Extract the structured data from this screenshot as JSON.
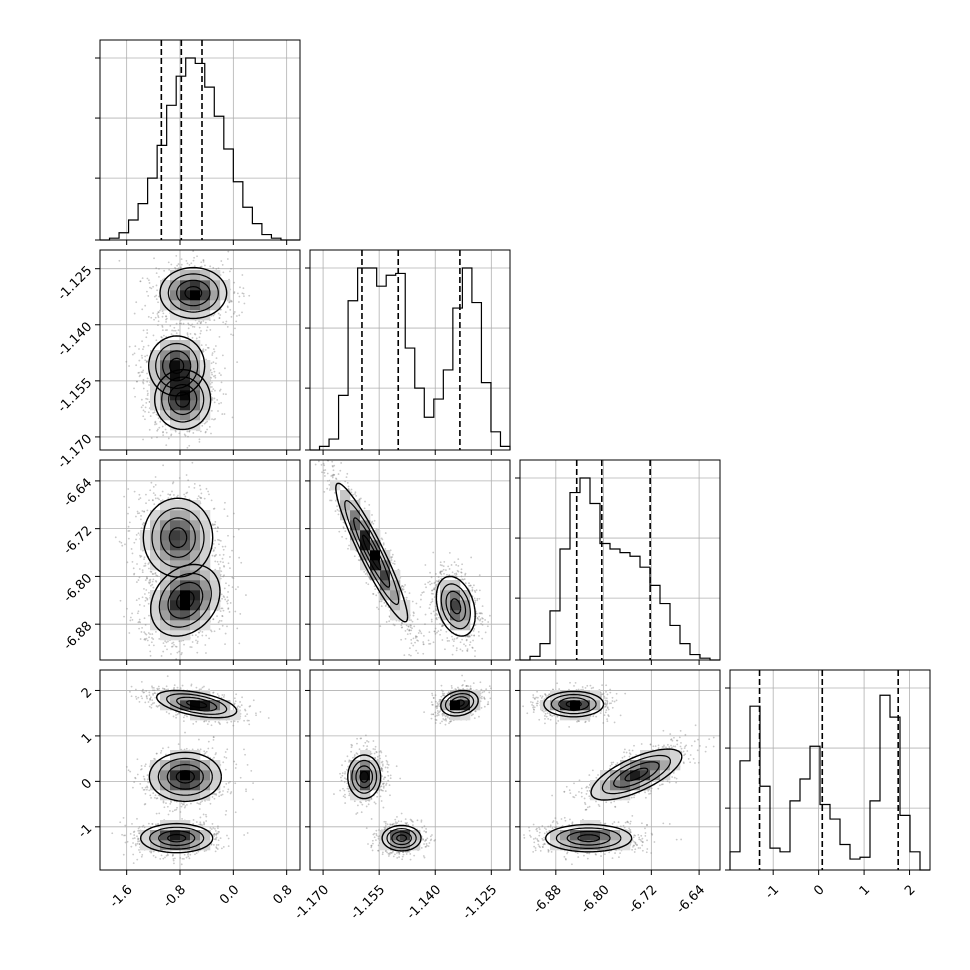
{
  "chart_data": {
    "type": "corner",
    "params": [
      {
        "ticks": [
          "-1.6",
          "-0.8",
          "0.0",
          "0.8"
        ],
        "tick_values": [
          -1.6,
          -0.8,
          0.0,
          0.8
        ],
        "range": [
          -2.0,
          1.0
        ],
        "quantiles": [
          -1.08,
          -0.78,
          -0.47
        ]
      },
      {
        "ticks": [
          "-1.170",
          "-1.155",
          "-1.140",
          "-1.125"
        ],
        "tick_values": [
          -1.17,
          -1.155,
          -1.14,
          -1.125
        ],
        "range": [
          -1.1735,
          -1.12
        ],
        "quantiles": [
          -1.1596,
          -1.1499,
          -1.1334
        ]
      },
      {
        "ticks": [
          "-6.88",
          "-6.80",
          "-6.72",
          "-6.64"
        ],
        "tick_values": [
          -6.88,
          -6.8,
          -6.72,
          -6.64
        ],
        "range": [
          -6.94,
          -6.605
        ],
        "quantiles": [
          -6.845,
          -6.803,
          -6.722
        ]
      },
      {
        "ticks": [
          "-1",
          "0",
          "1",
          "2"
        ],
        "tick_values": [
          -1,
          0,
          1,
          2
        ],
        "range": [
          -1.95,
          2.45
        ],
        "quantiles": [
          -1.3,
          0.08,
          1.75
        ]
      }
    ],
    "histograms": [
      {
        "counts": [
          0.0,
          0.01,
          0.04,
          0.11,
          0.2,
          0.34,
          0.52,
          0.74,
          0.9,
          1.0,
          0.97,
          0.84,
          0.68,
          0.5,
          0.32,
          0.18,
          0.09,
          0.03,
          0.01,
          0.0,
          0.0
        ]
      },
      {
        "counts": [
          0.0,
          0.02,
          0.06,
          0.3,
          0.82,
          1.0,
          1.0,
          0.9,
          0.96,
          0.97,
          0.56,
          0.34,
          0.18,
          0.28,
          0.44,
          0.78,
          1.0,
          0.81,
          0.37,
          0.1,
          0.02
        ]
      },
      {
        "counts": [
          0.0,
          0.02,
          0.09,
          0.27,
          0.61,
          0.92,
          1.0,
          0.86,
          0.64,
          0.61,
          0.59,
          0.57,
          0.51,
          0.41,
          0.31,
          0.19,
          0.09,
          0.03,
          0.01,
          0.0
        ]
      },
      {
        "counts": [
          0.1,
          0.6,
          0.9,
          0.46,
          0.12,
          0.1,
          0.38,
          0.5,
          0.68,
          0.36,
          0.28,
          0.14,
          0.06,
          0.07,
          0.38,
          0.96,
          0.84,
          0.3,
          0.1,
          0.0
        ]
      }
    ],
    "pairs": [
      {
        "x": 0,
        "y": 1,
        "modes": [
          {
            "mu": [
              -0.6,
              -1.1315
            ],
            "sigma": [
              0.25,
              0.0034
            ],
            "rho": 0.0,
            "weight": 1.0
          },
          {
            "mu": [
              -0.85,
              -1.151
            ],
            "sigma": [
              0.21,
              0.004
            ],
            "rho": 0.0,
            "weight": 0.9
          },
          {
            "mu": [
              -0.76,
              -1.16
            ],
            "sigma": [
              0.21,
              0.004
            ],
            "rho": 0.0,
            "weight": 0.9
          }
        ]
      },
      {
        "x": 0,
        "y": 2,
        "modes": [
          {
            "mu": [
              -0.83,
              -6.735
            ],
            "sigma": [
              0.26,
              0.033
            ],
            "rho": 0.0,
            "weight": 0.8
          },
          {
            "mu": [
              -0.72,
              -6.84
            ],
            "sigma": [
              0.26,
              0.03
            ],
            "rho": 0.25,
            "weight": 1.0
          }
        ]
      },
      {
        "x": 0,
        "y": 3,
        "modes": [
          {
            "mu": [
              -0.55,
              1.7
            ],
            "sigma": [
              0.3,
              0.15
            ],
            "rho": -0.5,
            "weight": 1.0
          },
          {
            "mu": [
              -0.72,
              0.1
            ],
            "sigma": [
              0.27,
              0.27
            ],
            "rho": 0.0,
            "weight": 1.0
          },
          {
            "mu": [
              -0.85,
              -1.25
            ],
            "sigma": [
              0.27,
              0.16
            ],
            "rho": 0.0,
            "weight": 1.0
          }
        ]
      },
      {
        "x": 1,
        "y": 2,
        "modes": [
          {
            "mu": [
              -1.157,
              -6.76
            ],
            "sigma": [
              0.0048,
              0.058
            ],
            "rho": -0.93,
            "weight": 1.0
          },
          {
            "mu": [
              -1.1345,
              -6.85
            ],
            "sigma": [
              0.0026,
              0.025
            ],
            "rho": -0.3,
            "weight": 0.75
          }
        ]
      },
      {
        "x": 1,
        "y": 3,
        "modes": [
          {
            "mu": [
              -1.1335,
              1.72
            ],
            "sigma": [
              0.0025,
              0.14
            ],
            "rho": 0.2,
            "weight": 1.0
          },
          {
            "mu": [
              -1.159,
              0.1
            ],
            "sigma": [
              0.0022,
              0.24
            ],
            "rho": 0.0,
            "weight": 0.85
          },
          {
            "mu": [
              -1.149,
              -1.25
            ],
            "sigma": [
              0.0026,
              0.14
            ],
            "rho": 0.0,
            "weight": 0.85
          }
        ]
      },
      {
        "x": 2,
        "y": 3,
        "modes": [
          {
            "mu": [
              -6.85,
              1.7
            ],
            "sigma": [
              0.025,
              0.14
            ],
            "rho": 0.0,
            "weight": 1.0
          },
          {
            "mu": [
              -6.745,
              0.15
            ],
            "sigma": [
              0.038,
              0.28
            ],
            "rho": 0.7,
            "weight": 0.9
          },
          {
            "mu": [
              -6.825,
              -1.25
            ],
            "sigma": [
              0.036,
              0.15
            ],
            "rho": 0.0,
            "weight": 0.9
          }
        ]
      }
    ],
    "grid": true,
    "colors": {
      "line": "#000000",
      "grid": "#b0b0b0",
      "fill": "#000000",
      "points": "#888888"
    }
  }
}
